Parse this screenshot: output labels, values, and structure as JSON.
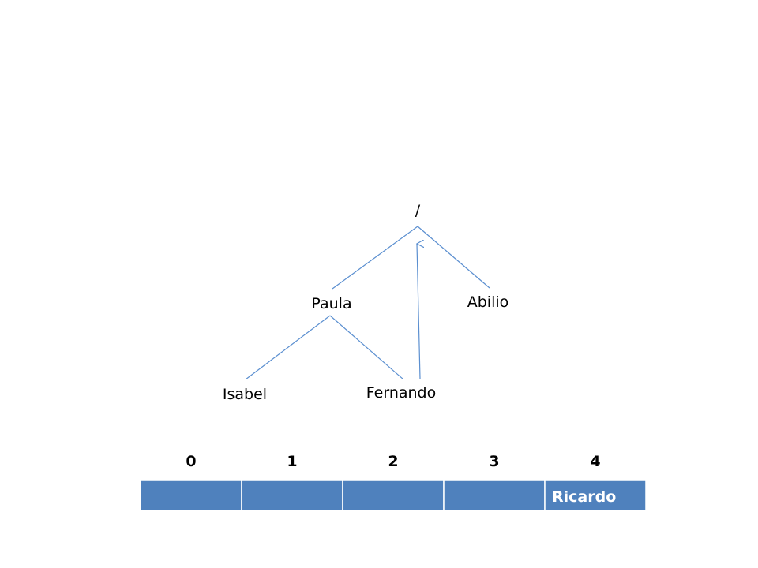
{
  "tree": {
    "root": {
      "label": "/"
    },
    "nodes": {
      "paula": {
        "label": "Paula"
      },
      "abilio": {
        "label": "Abilio"
      },
      "isabel": {
        "label": "Isabel"
      },
      "fernando": {
        "label": "Fernando"
      }
    }
  },
  "array": {
    "indices": [
      "0",
      "1",
      "2",
      "3",
      "4"
    ],
    "cells": [
      "",
      "",
      "",
      "",
      "Ricardo"
    ]
  },
  "colors": {
    "line": "#5b8fd0",
    "cell_fill": "#4f81bd",
    "cell_border": "#ffffff",
    "cell_text": "#ffffff"
  }
}
